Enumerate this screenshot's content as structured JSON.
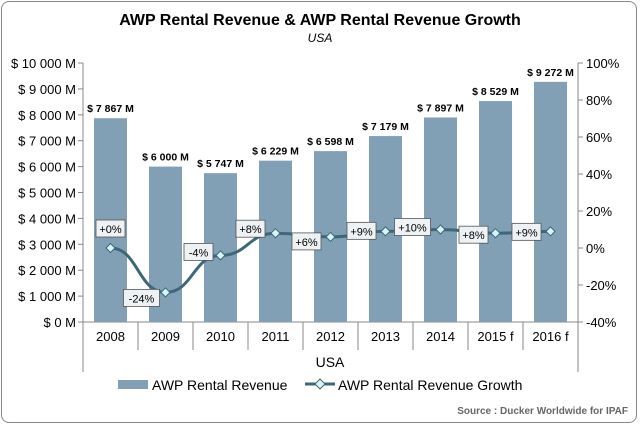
{
  "chart_data": {
    "type": "bar+line",
    "title": "AWP Rental Revenue & AWP Rental Revenue Growth",
    "subtitle": "USA",
    "xlabel": "USA",
    "categories": [
      "2008",
      "2009",
      "2010",
      "2011",
      "2012",
      "2013",
      "2014",
      "2015 f",
      "2016 f"
    ],
    "series": [
      {
        "name": "AWP Rental Revenue",
        "type": "bar",
        "axis": "left",
        "color": "#819fb5",
        "values": [
          7867,
          6000,
          5747,
          6229,
          6598,
          7179,
          7897,
          8529,
          9272
        ],
        "labels": [
          "$ 7 867 M",
          "$ 6 000 M",
          "$ 5 747 M",
          "$ 6 229 M",
          "$ 6 598 M",
          "$ 7 179 M",
          "$ 7 897 M",
          "$ 8 529 M",
          "$ 9 272 M"
        ]
      },
      {
        "name": "AWP Rental Revenue Growth",
        "type": "line",
        "axis": "right",
        "color": "#3d6878",
        "marker_color": "#d8f4f8",
        "values": [
          0,
          -24,
          -4,
          8,
          6,
          9,
          10,
          8,
          9
        ],
        "labels": [
          "+0%",
          "-24%",
          "-4%",
          "+8%",
          "+6%",
          "+9%",
          "+10%",
          "+8%",
          "+9%"
        ]
      }
    ],
    "y_left": {
      "range": [
        0,
        10000
      ],
      "ticks": [
        "$ 0 M",
        "$ 1 000 M",
        "$ 2 000 M",
        "$ 3 000 M",
        "$ 4 000 M",
        "$ 5 000 M",
        "$ 6 000 M",
        "$ 7 000 M",
        "$ 8 000 M",
        "$ 9 000 M",
        "$ 10 000 M"
      ]
    },
    "y_right": {
      "range": [
        -40,
        100
      ],
      "ticks": [
        "-40%",
        "-20%",
        "0%",
        "20%",
        "40%",
        "60%",
        "80%",
        "100%"
      ]
    },
    "grid": false,
    "legend": "bottom",
    "source": "Source : Ducker Worldwide for IPAF"
  }
}
